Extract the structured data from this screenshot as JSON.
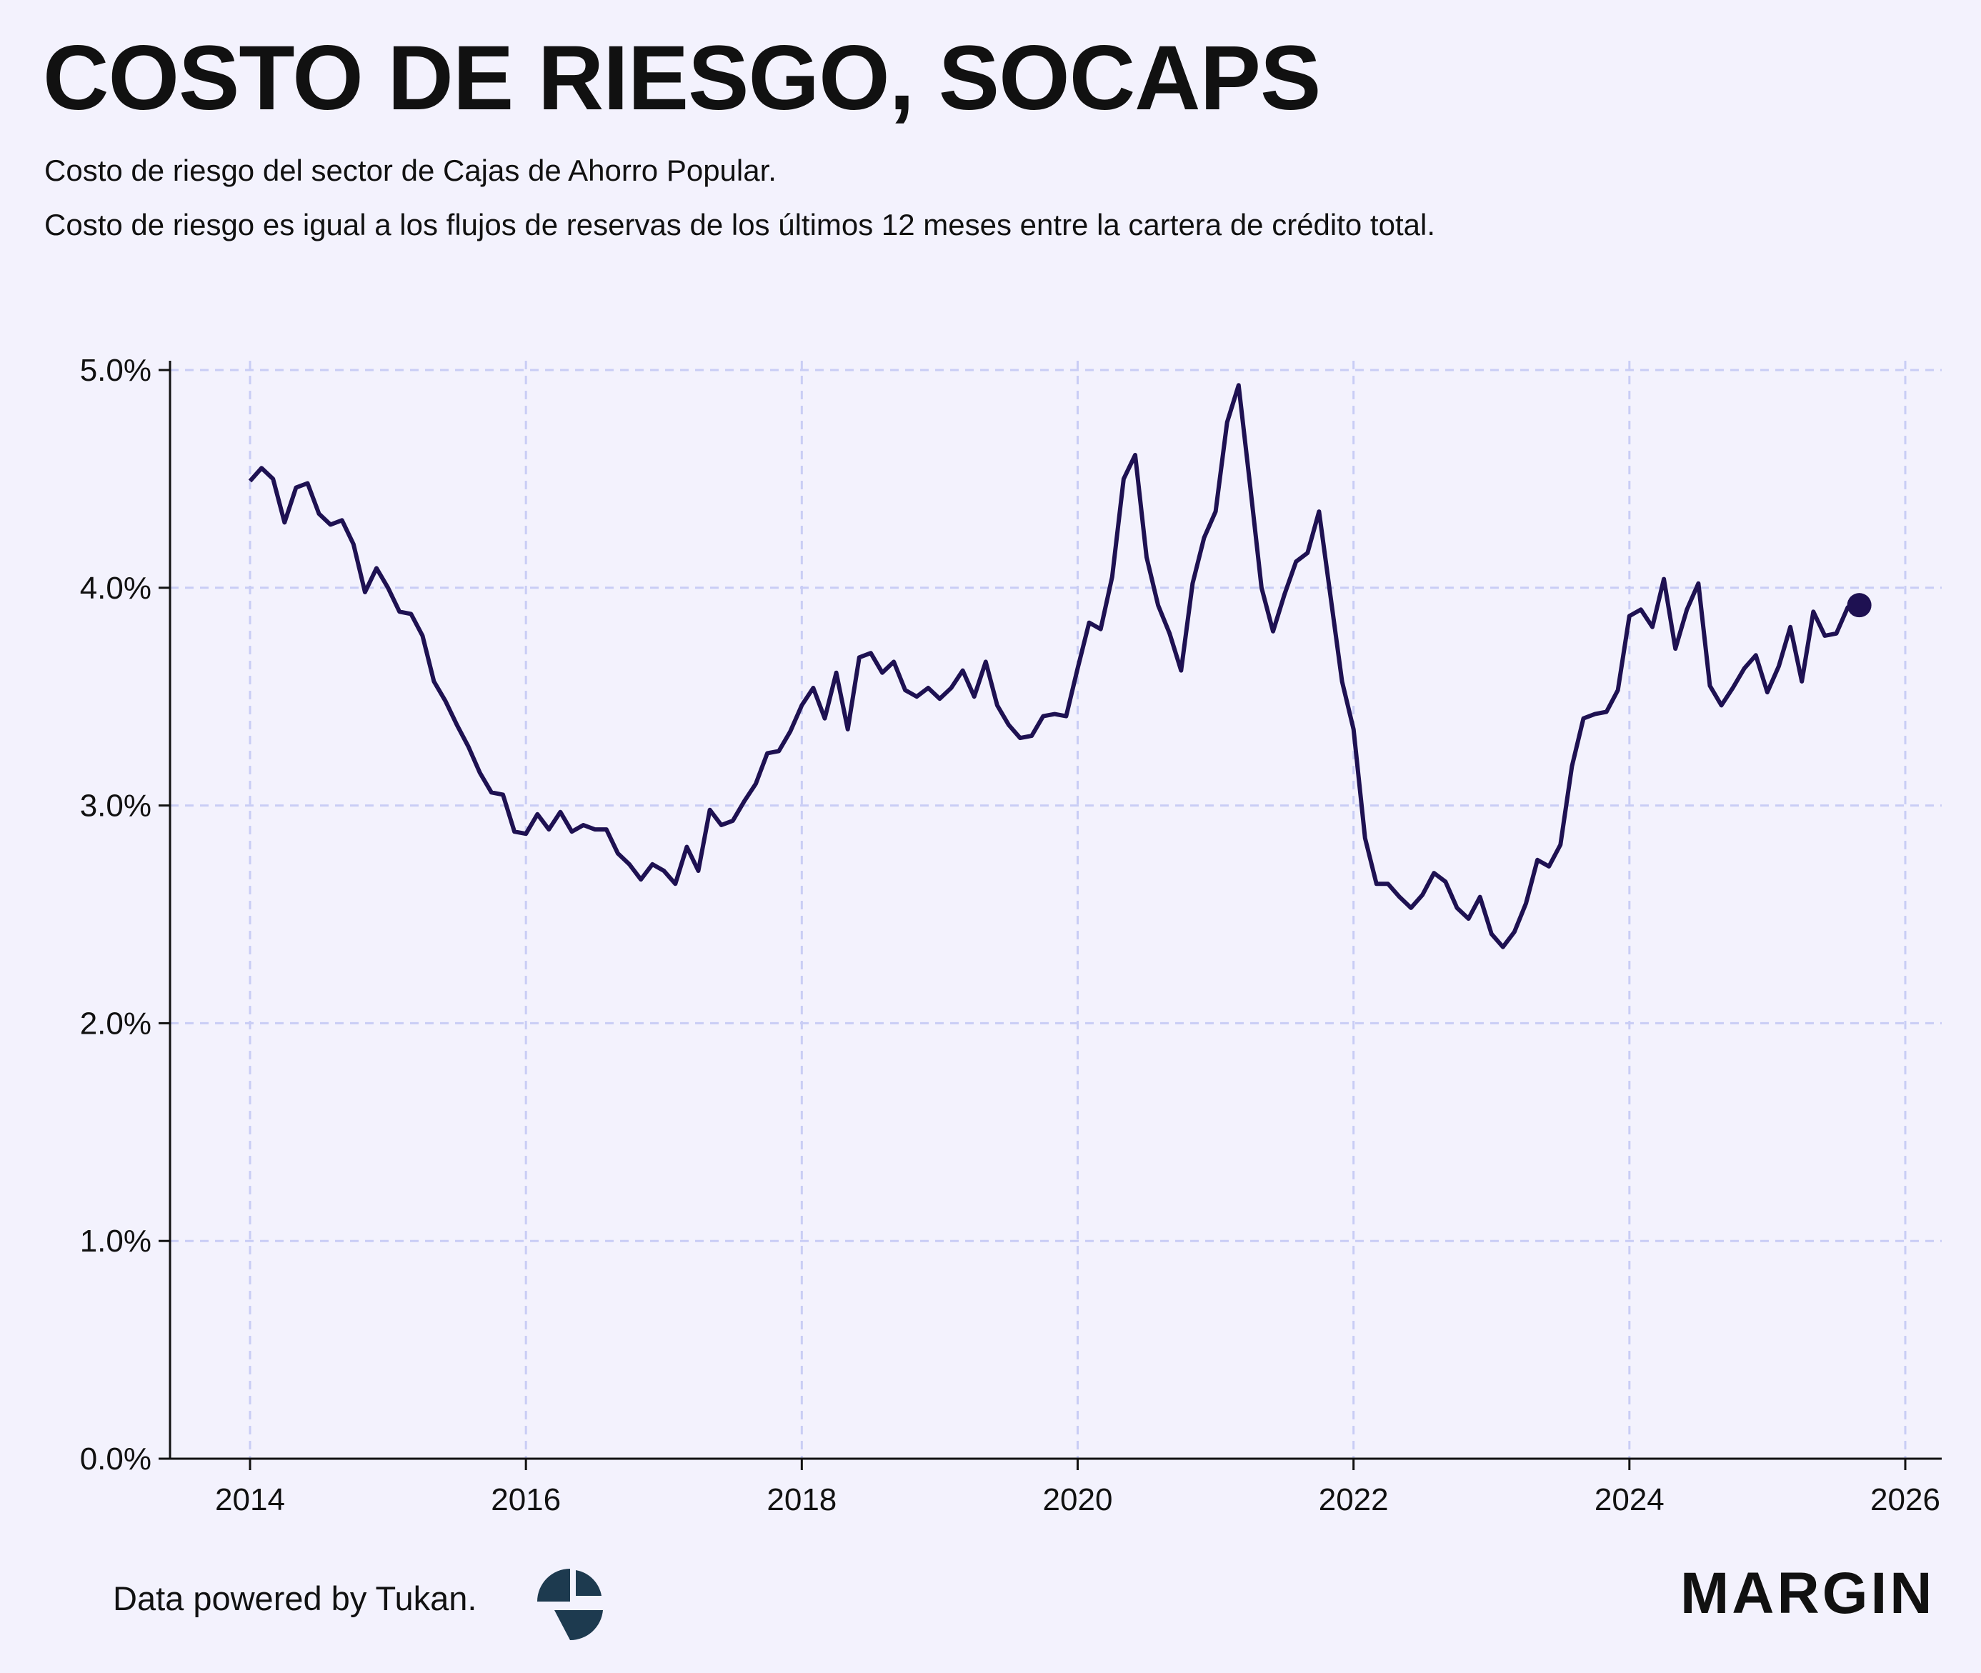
{
  "header": {
    "title": "COSTO DE RIESGO, SOCAPS",
    "subtitle_line1": "Costo de riesgo del sector de Cajas de Ahorro Popular.",
    "subtitle_line2": "Costo de riesgo es igual a los flujos de reservas de los últimos 12 meses entre la cartera de crédito total."
  },
  "footer": {
    "credit": "Data powered by Tukan.",
    "brand": "MARGIN"
  },
  "colors": {
    "background": "#f3f2fd",
    "line": "#1e1152",
    "grid": "#c9cdf5",
    "axis": "#111111",
    "tukan_logo": "#1d3a4f"
  },
  "icons": {
    "tukan": "tukan-logo-icon",
    "margin": "margin-wordmark"
  },
  "chart_data": {
    "type": "line",
    "title": "COSTO DE RIESGO, SOCAPS",
    "xlabel": "",
    "ylabel": "",
    "xlim": [
      2013.7,
      2026.15
    ],
    "ylim": [
      0,
      5.0
    ],
    "x_ticks": [
      2014,
      2016,
      2018,
      2020,
      2022,
      2024,
      2026
    ],
    "x_tick_labels": [
      "2014",
      "2016",
      "2018",
      "2020",
      "2022",
      "2024",
      "2026"
    ],
    "y_ticks": [
      0,
      1,
      2,
      3,
      4,
      5
    ],
    "y_tick_labels": [
      "0.0%",
      "1.0%",
      "2.0%",
      "3.0%",
      "4.0%",
      "5.0%"
    ],
    "grid": true,
    "legend": "none",
    "last_point_marker": true,
    "x_start": "2014-01",
    "frequency": "monthly",
    "values": [
      4.49,
      4.55,
      4.5,
      4.3,
      4.46,
      4.48,
      4.34,
      4.29,
      4.31,
      4.2,
      3.98,
      4.09,
      4.0,
      3.89,
      3.88,
      3.78,
      3.57,
      3.48,
      3.37,
      3.27,
      3.15,
      3.06,
      3.05,
      2.88,
      2.87,
      2.96,
      2.89,
      2.97,
      2.88,
      2.91,
      2.89,
      2.89,
      2.78,
      2.73,
      2.66,
      2.73,
      2.7,
      2.64,
      2.81,
      2.7,
      2.98,
      2.91,
      2.93,
      3.02,
      3.1,
      3.24,
      3.25,
      3.34,
      3.46,
      3.54,
      3.4,
      3.61,
      3.35,
      3.68,
      3.7,
      3.61,
      3.66,
      3.53,
      3.5,
      3.54,
      3.49,
      3.54,
      3.62,
      3.5,
      3.66,
      3.46,
      3.37,
      3.31,
      3.32,
      3.41,
      3.42,
      3.41,
      3.63,
      3.84,
      3.81,
      4.05,
      4.5,
      4.61,
      4.14,
      3.92,
      3.79,
      3.62,
      4.02,
      4.23,
      4.35,
      4.76,
      4.93,
      4.47,
      4.0,
      3.8,
      3.97,
      4.12,
      4.16,
      4.35,
      3.96,
      3.57,
      3.35,
      2.85,
      2.64,
      2.64,
      2.58,
      2.53,
      2.59,
      2.69,
      2.65,
      2.53,
      2.48,
      2.58,
      2.41,
      2.35,
      2.42,
      2.55,
      2.75,
      2.72,
      2.82,
      3.18,
      3.4,
      3.42,
      3.43,
      3.53,
      3.87,
      3.9,
      3.82,
      4.04,
      3.72,
      3.9,
      4.02,
      3.55,
      3.46,
      3.54,
      3.63,
      3.69,
      3.52,
      3.64,
      3.82,
      3.57,
      3.89,
      3.78,
      3.79,
      3.91,
      3.92
    ]
  }
}
